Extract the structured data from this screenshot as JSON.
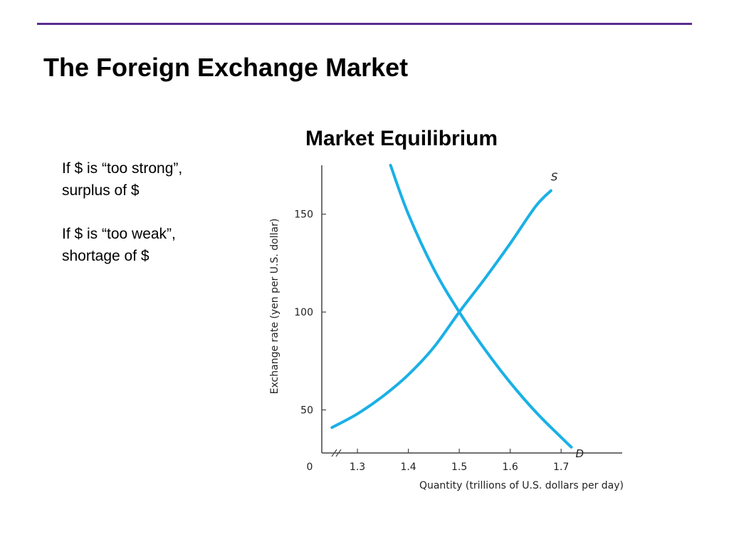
{
  "slide": {
    "title": "The Foreign Exchange Market",
    "accent_color": "#5b2d8f"
  },
  "bullets": {
    "strong": [
      "If $ is “too strong”,",
      "surplus of $"
    ],
    "weak": [
      "If $ is “too weak”,",
      "shortage of $"
    ]
  },
  "chart_data": {
    "type": "line",
    "title": "Market Equilibrium",
    "xlabel": "Quantity (trillions of U.S. dollars per day)",
    "ylabel": "Exchange rate (yen per U.S. dollar)",
    "xlim": [
      1.23,
      1.82
    ],
    "ylim": [
      28,
      175
    ],
    "x_origin_label": "0",
    "x_axis_break": true,
    "x_ticks": [
      1.3,
      1.4,
      1.5,
      1.6,
      1.7
    ],
    "x_tick_labels": [
      "1.3",
      "1.4",
      "1.5",
      "1.6",
      "1.7"
    ],
    "y_ticks": [
      50,
      100,
      150
    ],
    "y_tick_labels": [
      "50",
      "100",
      "150"
    ],
    "grid": false,
    "line_color": "#1ab0e6",
    "series": [
      {
        "name": "S",
        "x": [
          1.25,
          1.3,
          1.35,
          1.4,
          1.45,
          1.5,
          1.55,
          1.6,
          1.65,
          1.68
        ],
        "y": [
          41,
          48,
          57,
          68,
          82,
          100,
          117,
          135,
          154,
          162
        ]
      },
      {
        "name": "D",
        "x": [
          1.365,
          1.4,
          1.45,
          1.5,
          1.55,
          1.6,
          1.65,
          1.7,
          1.72
        ],
        "y": [
          175,
          150,
          122,
          100,
          81,
          64,
          49,
          36,
          31
        ]
      }
    ]
  }
}
